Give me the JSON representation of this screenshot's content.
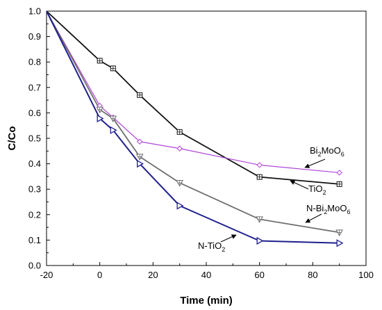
{
  "chart_data": {
    "type": "line",
    "title": "",
    "xlabel": "Time (min)",
    "ylabel": "C/Co",
    "xlim": [
      -20,
      100
    ],
    "ylim": [
      0.0,
      1.0
    ],
    "xticks": [
      -20,
      0,
      20,
      40,
      60,
      80,
      100
    ],
    "yticks": [
      0.0,
      0.1,
      0.2,
      0.3,
      0.4,
      0.5,
      0.6,
      0.7,
      0.8,
      0.9,
      1.0
    ],
    "grid": false,
    "legend": "none",
    "series": [
      {
        "id": "tio2",
        "label_main": "TiO",
        "label_sub": "2",
        "label_tail": "",
        "color": "#111111",
        "marker": "square-cross",
        "x": [
          -20,
          0,
          5,
          15,
          30,
          60,
          90
        ],
        "y": [
          1.0,
          0.805,
          0.775,
          0.67,
          0.525,
          0.348,
          0.32
        ]
      },
      {
        "id": "bi2moo6",
        "label_main": "Bi",
        "label_sub": "2",
        "label_tail": "MoO",
        "label_sub2": "6",
        "color": "#b044d8",
        "marker": "diamond",
        "x": [
          -20,
          0,
          5,
          15,
          30,
          60,
          90
        ],
        "y": [
          1.0,
          0.628,
          0.582,
          0.487,
          0.46,
          0.395,
          0.365
        ]
      },
      {
        "id": "n-bi2moo6",
        "label_main": "N-Bi",
        "label_sub": "2",
        "label_tail": "MoO",
        "label_sub2": "6",
        "color": "#6e6e6e",
        "marker": "triangle-down-cross",
        "x": [
          -20,
          0,
          5,
          15,
          30,
          60,
          90
        ],
        "y": [
          1.0,
          0.613,
          0.578,
          0.428,
          0.325,
          0.182,
          0.13
        ]
      },
      {
        "id": "n-tio2",
        "label_main": "N-TiO",
        "label_sub": "2",
        "label_tail": "",
        "color": "#1f1f8c",
        "marker": "triangle-right",
        "x": [
          -20,
          0,
          5,
          15,
          30,
          60,
          90
        ],
        "y": [
          1.0,
          0.578,
          0.532,
          0.4,
          0.235,
          0.097,
          0.088
        ]
      }
    ]
  }
}
